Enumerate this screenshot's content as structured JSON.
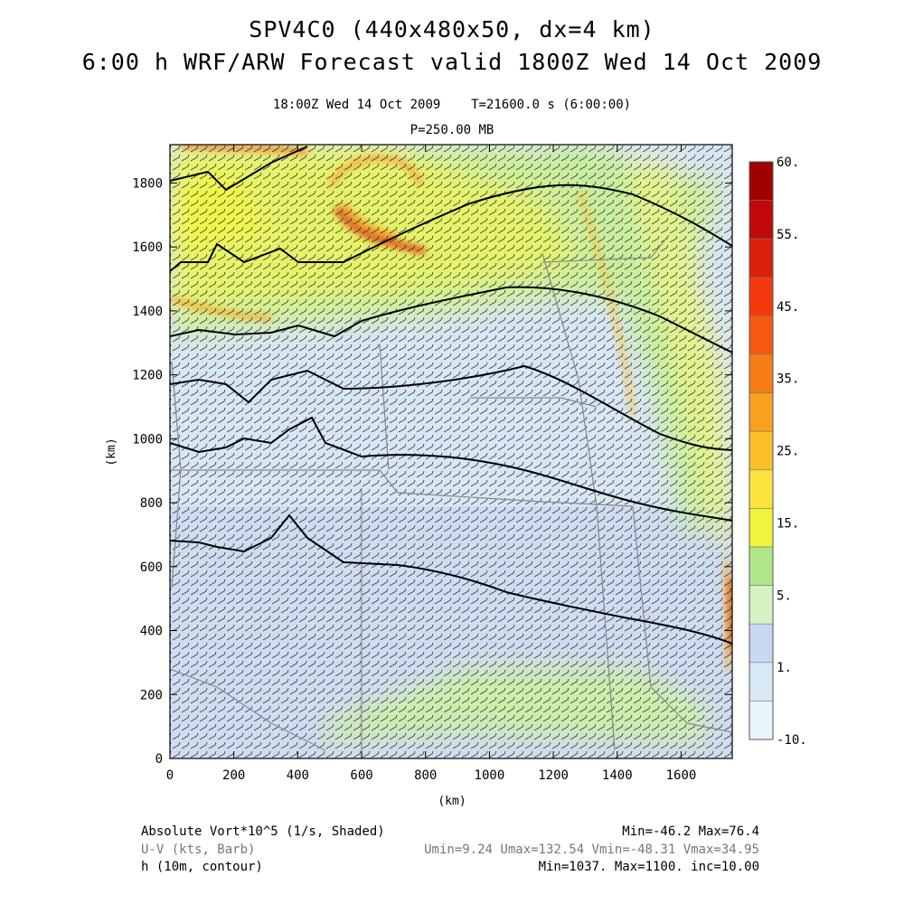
{
  "title": {
    "line1": "SPV4C0 (440x480x50, dx=4 km)",
    "line2": "6:00 h WRF/ARW Forecast valid 1800Z Wed 14 Oct 2009"
  },
  "subtitle": {
    "time": "18:00Z Wed 14 Oct 2009",
    "sim_time": "T=21600.0 s (6:00:00)",
    "level": "P=250.00 MB"
  },
  "chart_data": {
    "type": "heatmap",
    "xlabel": "(km)",
    "ylabel": "(km)",
    "xlim": [
      0,
      1760
    ],
    "ylim": [
      0,
      1920
    ],
    "xticks": [
      "0",
      "200",
      "400",
      "600",
      "800",
      "1000",
      "1200",
      "1400",
      "1600"
    ],
    "yticks": [
      "0",
      "200",
      "400",
      "600",
      "800",
      "1000",
      "1200",
      "1400",
      "1600",
      "1800"
    ],
    "colorbar": {
      "levels": [
        -10,
        1,
        5,
        15,
        25,
        35,
        45,
        55,
        60
      ],
      "labels": [
        "-10.",
        "1.",
        "5.",
        "15.",
        "25.",
        "35.",
        "45.",
        "55.",
        "60."
      ],
      "colors": [
        "#e8f4fb",
        "#d8e8f5",
        "#c9d7f3",
        "#d6f2c2",
        "#b0e68a",
        "#eef53c",
        "#fbe23c",
        "#fbbf2a",
        "#f9a01d",
        "#f77e16",
        "#f55a10",
        "#f2380c",
        "#d8200a",
        "#c00808",
        "#a00000"
      ]
    },
    "contour_levels": {
      "min": 1037,
      "max": 1100,
      "inc": 10
    }
  },
  "footer": {
    "field1": "Absolute Vort*10^5 (1/s, Shaded)",
    "field1_stats": "Min=-46.2 Max=76.4",
    "field2": "U-V (kts, Barb)",
    "field2_stats": "Umin=9.24 Umax=132.54 Vmin=-48.31 Vmax=34.95",
    "field3": "h (10m, contour)",
    "field3_stats": "Min=1037. Max=1100. inc=10.00"
  }
}
